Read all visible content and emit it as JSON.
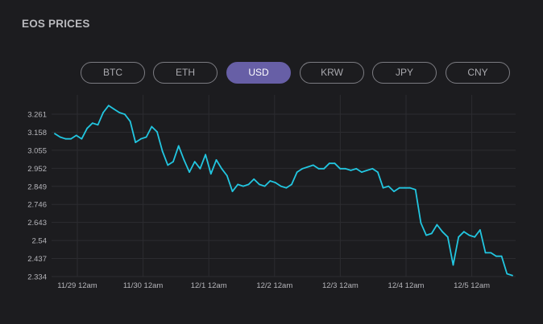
{
  "title": "EOS PRICES",
  "tabs": [
    {
      "label": "BTC",
      "active": false
    },
    {
      "label": "ETH",
      "active": false
    },
    {
      "label": "USD",
      "active": true
    },
    {
      "label": "KRW",
      "active": false
    },
    {
      "label": "JPY",
      "active": false
    },
    {
      "label": "CNY",
      "active": false
    }
  ],
  "colors": {
    "background": "#1c1c1f",
    "line": "#22c6e0",
    "active_tab": "#675fa6",
    "grid": "#2c2c30"
  },
  "chart_data": {
    "type": "line",
    "grid": true,
    "ylim": [
      2.334,
      3.331
    ],
    "yticks": [
      "3.261",
      "3.158",
      "3.055",
      "2.952",
      "2.849",
      "2.746",
      "2.643",
      "2.54",
      "2.437",
      "2.334"
    ],
    "xticks": [
      "11/29 12am",
      "11/30 12am",
      "12/1 12am",
      "12/2 12am",
      "12/3 12am",
      "12/4 12am",
      "12/5 12am"
    ],
    "series": [
      {
        "x_range": [
          "11/28 ~20:00",
          "12/5 ~14:00"
        ],
        "values": [
          3.15,
          3.13,
          3.12,
          3.12,
          3.14,
          3.12,
          3.18,
          3.21,
          3.2,
          3.27,
          3.31,
          3.29,
          3.27,
          3.26,
          3.22,
          3.1,
          3.12,
          3.13,
          3.19,
          3.16,
          3.05,
          2.97,
          2.99,
          3.08,
          3.0,
          2.93,
          2.99,
          2.95,
          3.03,
          2.92,
          3.0,
          2.95,
          2.91,
          2.82,
          2.86,
          2.85,
          2.86,
          2.89,
          2.86,
          2.85,
          2.88,
          2.87,
          2.85,
          2.84,
          2.86,
          2.93,
          2.95,
          2.96,
          2.97,
          2.95,
          2.95,
          2.98,
          2.98,
          2.95,
          2.95,
          2.94,
          2.95,
          2.93,
          2.94,
          2.95,
          2.93,
          2.84,
          2.85,
          2.82,
          2.84,
          2.84,
          2.84,
          2.83,
          2.64,
          2.57,
          2.58,
          2.63,
          2.59,
          2.56,
          2.4,
          2.56,
          2.59,
          2.57,
          2.56,
          2.6,
          2.47,
          2.47,
          2.45,
          2.45,
          2.35,
          2.34
        ]
      }
    ]
  }
}
